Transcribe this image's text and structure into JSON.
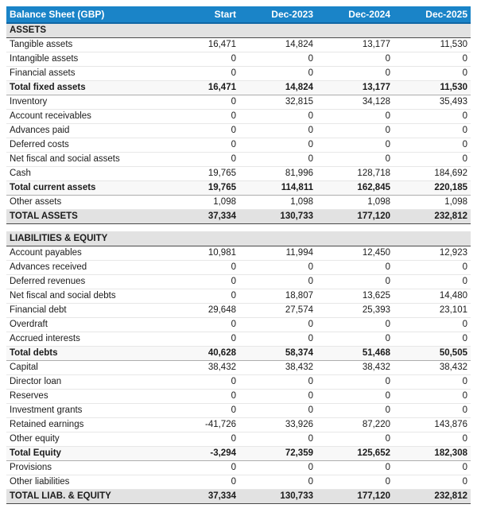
{
  "table": {
    "title": "Balance Sheet (GBP)",
    "columns": [
      "Start",
      "Dec-2023",
      "Dec-2024",
      "Dec-2025"
    ],
    "colors": {
      "header_bg": "#1a84c8",
      "header_border": "#0f66a4",
      "header_text": "#ffffff",
      "section_bg": "#e2e2e2",
      "subtotal_bg": "#f8f8f8",
      "row_border": "#e7e7e7",
      "strong_border": "#4a4a4a",
      "text": "#1b1b1b"
    },
    "rows": [
      {
        "type": "section",
        "label": "ASSETS"
      },
      {
        "type": "normal",
        "label": "Tangible assets",
        "values": [
          "16,471",
          "14,824",
          "13,177",
          "11,530"
        ]
      },
      {
        "type": "normal",
        "label": "Intangible assets",
        "values": [
          "0",
          "0",
          "0",
          "0"
        ]
      },
      {
        "type": "normal",
        "label": "Financial assets",
        "values": [
          "0",
          "0",
          "0",
          "0"
        ]
      },
      {
        "type": "subtotal",
        "label": "Total fixed assets",
        "values": [
          "16,471",
          "14,824",
          "13,177",
          "11,530"
        ]
      },
      {
        "type": "normal",
        "label": "Inventory",
        "values": [
          "0",
          "32,815",
          "34,128",
          "35,493"
        ]
      },
      {
        "type": "normal",
        "label": "Account receivables",
        "values": [
          "0",
          "0",
          "0",
          "0"
        ]
      },
      {
        "type": "normal",
        "label": "Advances paid",
        "values": [
          "0",
          "0",
          "0",
          "0"
        ]
      },
      {
        "type": "normal",
        "label": "Deferred costs",
        "values": [
          "0",
          "0",
          "0",
          "0"
        ]
      },
      {
        "type": "normal",
        "label": "Net fiscal and social assets",
        "values": [
          "0",
          "0",
          "0",
          "0"
        ]
      },
      {
        "type": "normal",
        "label": "Cash",
        "values": [
          "19,765",
          "81,996",
          "128,718",
          "184,692"
        ]
      },
      {
        "type": "subtotal",
        "label": "Total current assets",
        "values": [
          "19,765",
          "114,811",
          "162,845",
          "220,185"
        ]
      },
      {
        "type": "normal",
        "label": "Other assets",
        "values": [
          "1,098",
          "1,098",
          "1,098",
          "1,098"
        ]
      },
      {
        "type": "grand",
        "label": "TOTAL ASSETS",
        "values": [
          "37,334",
          "130,733",
          "177,120",
          "232,812"
        ]
      },
      {
        "type": "spacer"
      },
      {
        "type": "section",
        "label": "LIABILITIES & EQUITY"
      },
      {
        "type": "normal",
        "label": "Account payables",
        "values": [
          "10,981",
          "11,994",
          "12,450",
          "12,923"
        ]
      },
      {
        "type": "normal",
        "label": "Advances received",
        "values": [
          "0",
          "0",
          "0",
          "0"
        ]
      },
      {
        "type": "normal",
        "label": "Deferred revenues",
        "values": [
          "0",
          "0",
          "0",
          "0"
        ]
      },
      {
        "type": "normal",
        "label": "Net fiscal and social debts",
        "values": [
          "0",
          "18,807",
          "13,625",
          "14,480"
        ]
      },
      {
        "type": "normal",
        "label": "Financial debt",
        "values": [
          "29,648",
          "27,574",
          "25,393",
          "23,101"
        ]
      },
      {
        "type": "normal",
        "label": "Overdraft",
        "values": [
          "0",
          "0",
          "0",
          "0"
        ]
      },
      {
        "type": "normal",
        "label": "Accrued interests",
        "values": [
          "0",
          "0",
          "0",
          "0"
        ]
      },
      {
        "type": "subtotal",
        "label": "Total debts",
        "values": [
          "40,628",
          "58,374",
          "51,468",
          "50,505"
        ]
      },
      {
        "type": "normal",
        "label": "Capital",
        "values": [
          "38,432",
          "38,432",
          "38,432",
          "38,432"
        ]
      },
      {
        "type": "normal",
        "label": "Director loan",
        "values": [
          "0",
          "0",
          "0",
          "0"
        ]
      },
      {
        "type": "normal",
        "label": "Reserves",
        "values": [
          "0",
          "0",
          "0",
          "0"
        ]
      },
      {
        "type": "normal",
        "label": "Investment grants",
        "values": [
          "0",
          "0",
          "0",
          "0"
        ]
      },
      {
        "type": "normal",
        "label": "Retained earnings",
        "values": [
          "-41,726",
          "33,926",
          "87,220",
          "143,876"
        ]
      },
      {
        "type": "normal",
        "label": "Other equity",
        "values": [
          "0",
          "0",
          "0",
          "0"
        ]
      },
      {
        "type": "subtotal",
        "label": "Total Equity",
        "values": [
          "-3,294",
          "72,359",
          "125,652",
          "182,308"
        ]
      },
      {
        "type": "normal",
        "label": "Provisions",
        "values": [
          "0",
          "0",
          "0",
          "0"
        ]
      },
      {
        "type": "normal",
        "label": "Other liabilities",
        "values": [
          "0",
          "0",
          "0",
          "0"
        ]
      },
      {
        "type": "grand",
        "label": "TOTAL LIAB. & EQUITY",
        "values": [
          "37,334",
          "130,733",
          "177,120",
          "232,812"
        ]
      }
    ]
  }
}
